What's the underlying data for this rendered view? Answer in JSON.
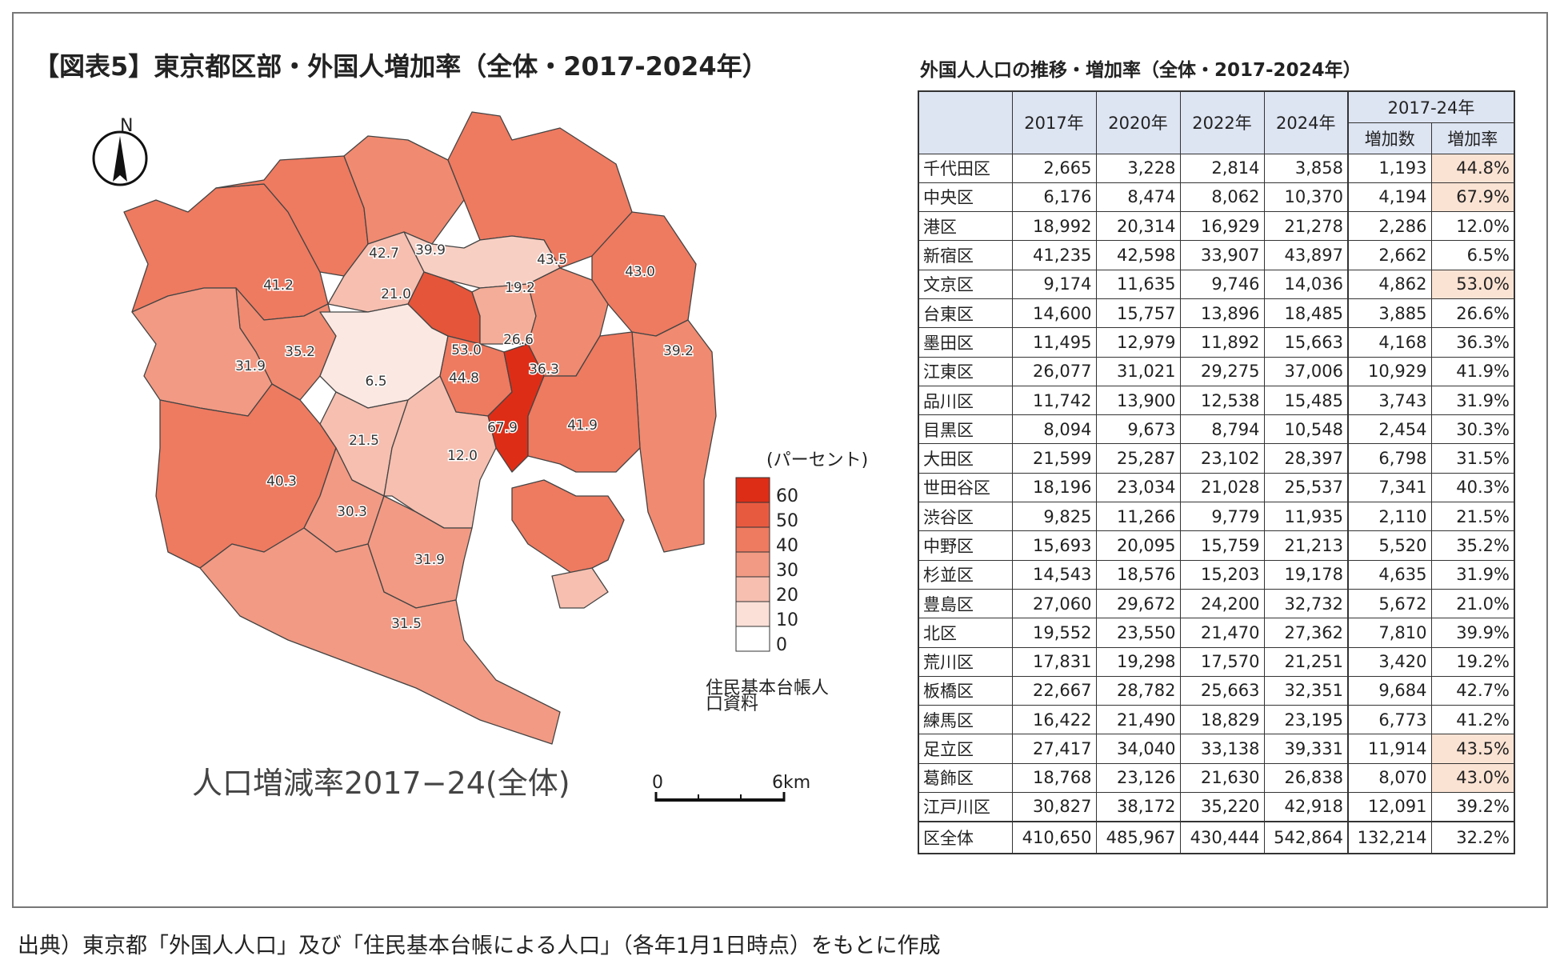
{
  "map": {
    "title": "【図表5】東京都区部・外国人増加率（全体・2017-2024年）",
    "subtitle": "人口増減率2017−24(全体)",
    "north_symbol": "N",
    "legend": {
      "title": "(パーセント)",
      "ticks": [
        "60",
        "50",
        "40",
        "30",
        "20",
        "10",
        "0"
      ],
      "colors": [
        "#de2d17",
        "#e85a40",
        "#ee7a60",
        "#f29a84",
        "#f6bfb0",
        "#fbe0d8",
        "#ffffff"
      ],
      "note_line1": "住民基本台帳人",
      "note_line2": "口資料"
    },
    "scale": {
      "start": "0",
      "end": "6km"
    },
    "ward_values": [
      {
        "ward": "千代田区",
        "value": 44.8,
        "label": "44.8",
        "color": "#ee7a60"
      },
      {
        "ward": "中央区",
        "value": 67.9,
        "label": "67.9",
        "color": "#de2d17"
      },
      {
        "ward": "港区",
        "value": 12.0,
        "label": "12.0",
        "color": "#f6bfb0"
      },
      {
        "ward": "新宿区",
        "value": 6.5,
        "label": "6.5",
        "color": "#fbe8e2"
      },
      {
        "ward": "文京区",
        "value": 53.0,
        "label": "53.0",
        "color": "#e4553a"
      },
      {
        "ward": "台東区",
        "value": 26.6,
        "label": "26.6",
        "color": "#f4ad98"
      },
      {
        "ward": "墨田区",
        "value": 36.3,
        "label": "36.3",
        "color": "#f08a70"
      },
      {
        "ward": "江東区",
        "value": 41.9,
        "label": "41.9",
        "color": "#ee7a60"
      },
      {
        "ward": "品川区",
        "value": 31.9,
        "label": "31.9",
        "color": "#f29a84"
      },
      {
        "ward": "目黒区",
        "value": 30.3,
        "label": "30.3",
        "color": "#f29a84"
      },
      {
        "ward": "大田区",
        "value": 31.5,
        "label": "31.5",
        "color": "#f29a84"
      },
      {
        "ward": "世田谷区",
        "value": 40.3,
        "label": "40.3",
        "color": "#ee7a60"
      },
      {
        "ward": "渋谷区",
        "value": 21.5,
        "label": "21.5",
        "color": "#f6bfb0"
      },
      {
        "ward": "中野区",
        "value": 35.2,
        "label": "35.2",
        "color": "#f08a70"
      },
      {
        "ward": "杉並区",
        "value": 31.9,
        "label": "31.9",
        "color": "#f29a84"
      },
      {
        "ward": "豊島区",
        "value": 21.0,
        "label": "21.0",
        "color": "#f6bfb0"
      },
      {
        "ward": "北区",
        "value": 39.9,
        "label": "39.9",
        "color": "#f08a70"
      },
      {
        "ward": "荒川区",
        "value": 19.2,
        "label": "19.2",
        "color": "#f8cfc3"
      },
      {
        "ward": "板橋区",
        "value": 42.7,
        "label": "42.7",
        "color": "#ee7a60"
      },
      {
        "ward": "練馬区",
        "value": 41.2,
        "label": "41.2",
        "color": "#ee7a60"
      },
      {
        "ward": "足立区",
        "value": 43.5,
        "label": "43.5",
        "color": "#ee7a60"
      },
      {
        "ward": "葛飾区",
        "value": 43.0,
        "label": "43.0",
        "color": "#ee7a60"
      },
      {
        "ward": "江戸川区",
        "value": 39.2,
        "label": "39.2",
        "color": "#f08a70"
      }
    ]
  },
  "table": {
    "title": "外国人人口の推移・増加率（全体・2017-2024年）",
    "headers": {
      "y2017": "2017年",
      "y2020": "2020年",
      "y2022": "2022年",
      "y2024": "2024年",
      "period": "2017-24年",
      "increase": "増加数",
      "rate": "増加率"
    },
    "rows": [
      {
        "ward": "千代田区",
        "y2017": "2,665",
        "y2020": "3,228",
        "y2022": "2,814",
        "y2024": "3,858",
        "increase": "1,193",
        "rate": "44.8%",
        "highlight": true
      },
      {
        "ward": "中央区",
        "y2017": "6,176",
        "y2020": "8,474",
        "y2022": "8,062",
        "y2024": "10,370",
        "increase": "4,194",
        "rate": "67.9%",
        "highlight": true
      },
      {
        "ward": "港区",
        "y2017": "18,992",
        "y2020": "20,314",
        "y2022": "16,929",
        "y2024": "21,278",
        "increase": "2,286",
        "rate": "12.0%",
        "highlight": false
      },
      {
        "ward": "新宿区",
        "y2017": "41,235",
        "y2020": "42,598",
        "y2022": "33,907",
        "y2024": "43,897",
        "increase": "2,662",
        "rate": "6.5%",
        "highlight": false
      },
      {
        "ward": "文京区",
        "y2017": "9,174",
        "y2020": "11,635",
        "y2022": "9,746",
        "y2024": "14,036",
        "increase": "4,862",
        "rate": "53.0%",
        "highlight": true
      },
      {
        "ward": "台東区",
        "y2017": "14,600",
        "y2020": "15,757",
        "y2022": "13,896",
        "y2024": "18,485",
        "increase": "3,885",
        "rate": "26.6%",
        "highlight": false
      },
      {
        "ward": "墨田区",
        "y2017": "11,495",
        "y2020": "12,979",
        "y2022": "11,892",
        "y2024": "15,663",
        "increase": "4,168",
        "rate": "36.3%",
        "highlight": false
      },
      {
        "ward": "江東区",
        "y2017": "26,077",
        "y2020": "31,021",
        "y2022": "29,275",
        "y2024": "37,006",
        "increase": "10,929",
        "rate": "41.9%",
        "highlight": false
      },
      {
        "ward": "品川区",
        "y2017": "11,742",
        "y2020": "13,900",
        "y2022": "12,538",
        "y2024": "15,485",
        "increase": "3,743",
        "rate": "31.9%",
        "highlight": false
      },
      {
        "ward": "目黒区",
        "y2017": "8,094",
        "y2020": "9,673",
        "y2022": "8,794",
        "y2024": "10,548",
        "increase": "2,454",
        "rate": "30.3%",
        "highlight": false
      },
      {
        "ward": "大田区",
        "y2017": "21,599",
        "y2020": "25,287",
        "y2022": "23,102",
        "y2024": "28,397",
        "increase": "6,798",
        "rate": "31.5%",
        "highlight": false
      },
      {
        "ward": "世田谷区",
        "y2017": "18,196",
        "y2020": "23,034",
        "y2022": "21,028",
        "y2024": "25,537",
        "increase": "7,341",
        "rate": "40.3%",
        "highlight": false
      },
      {
        "ward": "渋谷区",
        "y2017": "9,825",
        "y2020": "11,266",
        "y2022": "9,779",
        "y2024": "11,935",
        "increase": "2,110",
        "rate": "21.5%",
        "highlight": false
      },
      {
        "ward": "中野区",
        "y2017": "15,693",
        "y2020": "20,095",
        "y2022": "15,759",
        "y2024": "21,213",
        "increase": "5,520",
        "rate": "35.2%",
        "highlight": false
      },
      {
        "ward": "杉並区",
        "y2017": "14,543",
        "y2020": "18,576",
        "y2022": "15,203",
        "y2024": "19,178",
        "increase": "4,635",
        "rate": "31.9%",
        "highlight": false
      },
      {
        "ward": "豊島区",
        "y2017": "27,060",
        "y2020": "29,672",
        "y2022": "24,200",
        "y2024": "32,732",
        "increase": "5,672",
        "rate": "21.0%",
        "highlight": false
      },
      {
        "ward": "北区",
        "y2017": "19,552",
        "y2020": "23,550",
        "y2022": "21,470",
        "y2024": "27,362",
        "increase": "7,810",
        "rate": "39.9%",
        "highlight": false
      },
      {
        "ward": "荒川区",
        "y2017": "17,831",
        "y2020": "19,298",
        "y2022": "17,570",
        "y2024": "21,251",
        "increase": "3,420",
        "rate": "19.2%",
        "highlight": false
      },
      {
        "ward": "板橋区",
        "y2017": "22,667",
        "y2020": "28,782",
        "y2022": "25,663",
        "y2024": "32,351",
        "increase": "9,684",
        "rate": "42.7%",
        "highlight": false
      },
      {
        "ward": "練馬区",
        "y2017": "16,422",
        "y2020": "21,490",
        "y2022": "18,829",
        "y2024": "23,195",
        "increase": "6,773",
        "rate": "41.2%",
        "highlight": false
      },
      {
        "ward": "足立区",
        "y2017": "27,417",
        "y2020": "34,040",
        "y2022": "33,138",
        "y2024": "39,331",
        "increase": "11,914",
        "rate": "43.5%",
        "highlight": true
      },
      {
        "ward": "葛飾区",
        "y2017": "18,768",
        "y2020": "23,126",
        "y2022": "21,630",
        "y2024": "26,838",
        "increase": "8,070",
        "rate": "43.0%",
        "highlight": true
      },
      {
        "ward": "江戸川区",
        "y2017": "30,827",
        "y2020": "38,172",
        "y2022": "35,220",
        "y2024": "42,918",
        "increase": "12,091",
        "rate": "39.2%",
        "highlight": false
      }
    ],
    "total": {
      "ward": "区全体",
      "y2017": "410,650",
      "y2020": "485,967",
      "y2022": "430,444",
      "y2024": "542,864",
      "increase": "132,214",
      "rate": "32.2%"
    }
  },
  "source": "出典）東京都「外国人人口」及び「住民基本台帳による人口」（各年1月1日時点）をもとに作成",
  "colors": {
    "highlight": "#fbe3d4",
    "header_bg": "#dde4f2"
  }
}
